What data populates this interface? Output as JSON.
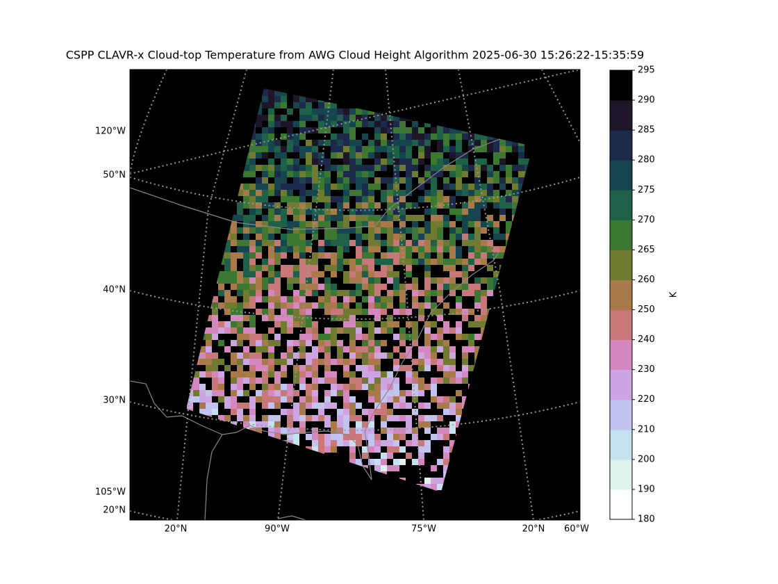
{
  "title": "CSPP CLAVR-x Cloud-top Temperature from AWG Cloud Height Algorithm 2025-06-30 15:26:22-15:35:59",
  "map": {
    "left_labels": [
      "120°W",
      "50°N",
      "40°N",
      "30°N",
      "105°W",
      "20°N"
    ],
    "bottom_labels": [
      "20°N",
      "90°W",
      "75°W",
      "20°N",
      "60°W"
    ]
  },
  "colorbar": {
    "label": "K",
    "boundaries": [
      180,
      190,
      200,
      210,
      220,
      230,
      240,
      250,
      260,
      265,
      270,
      275,
      280,
      285,
      290,
      295
    ],
    "colors": [
      "#ffffff",
      "#dff3ee",
      "#c6e1f0",
      "#c3c3f0",
      "#cca5e2",
      "#d587c0",
      "#c87878",
      "#a87a4a",
      "#707a30",
      "#3c7832",
      "#1e6048",
      "#17454f",
      "#1c294a",
      "#1e1528",
      "#000000"
    ]
  }
}
